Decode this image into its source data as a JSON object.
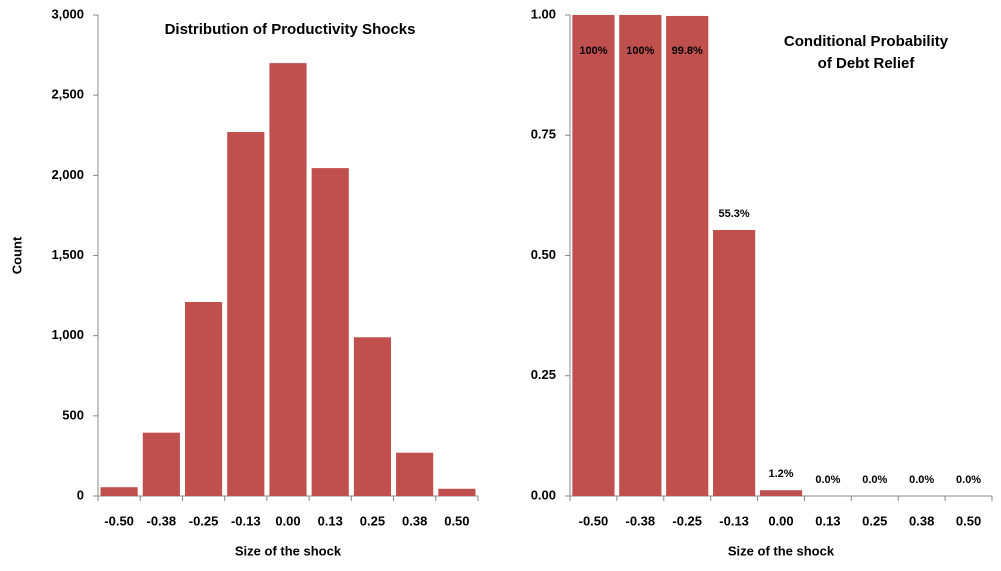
{
  "chart_data": [
    {
      "type": "bar",
      "title": [
        "Distribution of Productivity Shocks"
      ],
      "xlabel": "Size of the shock",
      "ylabel": "Count",
      "categories": [
        "-0.50",
        "-0.38",
        "-0.25",
        "-0.13",
        "0.00",
        "0.13",
        "0.25",
        "0.38",
        "0.50"
      ],
      "values": [
        55,
        395,
        1210,
        2270,
        2700,
        2045,
        990,
        270,
        45
      ],
      "color": "#c0504d",
      "ylim": [
        0,
        3000
      ],
      "yticks": [
        0,
        500,
        {
          "value": 1000,
          "label": "1,000"
        },
        {
          "value": 1500,
          "label": "1,500"
        },
        {
          "value": 2000,
          "label": "2,000"
        },
        {
          "value": 2500,
          "label": "2,500"
        },
        {
          "value": 3000,
          "label": "3,000"
        }
      ]
    },
    {
      "type": "bar",
      "title": [
        "Conditional Probability",
        "of Debt Relief"
      ],
      "xlabel": "Size of the shock",
      "categories": [
        "-0.50",
        "-0.38",
        "-0.25",
        "-0.13",
        "0.00",
        "0.13",
        "0.25",
        "0.38",
        "0.50"
      ],
      "values": [
        1,
        1,
        0.998,
        0.553,
        0.012,
        0,
        0,
        0,
        0
      ],
      "value_labels": [
        "100%",
        "100%",
        "99.8%",
        "55.3%",
        "1.2%",
        "0.0%",
        "0.0%",
        "0.0%",
        "0.0%"
      ],
      "color": "#c0504d",
      "ylim": [
        0,
        1
      ],
      "yticks": [
        {
          "value": 0,
          "label": "0.00"
        },
        {
          "value": 0.25,
          "label": "0.25"
        },
        {
          "value": 0.5,
          "label": "0.50"
        },
        {
          "value": 0.75,
          "label": "0.75"
        },
        {
          "value": 1,
          "label": "1.00"
        }
      ]
    }
  ]
}
